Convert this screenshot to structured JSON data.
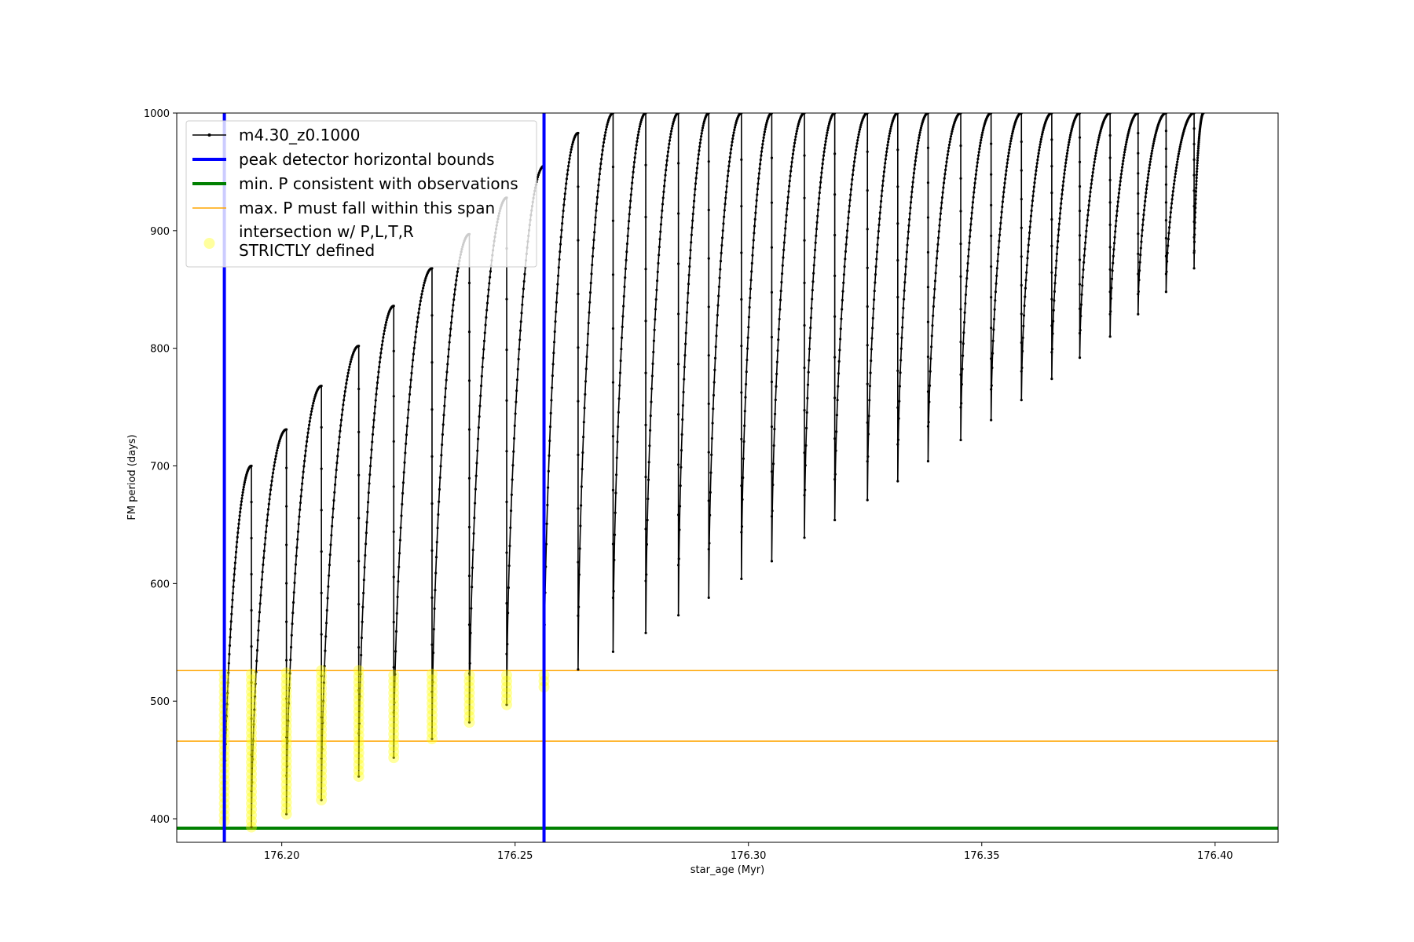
{
  "chart_data": {
    "type": "line",
    "title": "",
    "xlabel": "star_age (Myr)",
    "ylabel": "FM period (days)",
    "xlim": [
      176.1775,
      176.4135
    ],
    "ylim": [
      380,
      1000
    ],
    "xticks": [
      176.2,
      176.25,
      176.3,
      176.35,
      176.4
    ],
    "xtick_labels": [
      "176.20",
      "176.25",
      "176.30",
      "176.35",
      "176.40"
    ],
    "yticks": [
      400,
      500,
      600,
      700,
      800,
      900,
      1000
    ],
    "ytick_labels": [
      "400",
      "500",
      "600",
      "700",
      "800",
      "900",
      "1000"
    ],
    "grid": false,
    "legend_position": "upper-left",
    "legend": [
      {
        "key": "model",
        "label": "m4.30_z0.1000",
        "color": "#000000",
        "style": "line-marker"
      },
      {
        "key": "peak",
        "label": "peak detector horizontal bounds",
        "color": "#0000ff",
        "style": "thick-line"
      },
      {
        "key": "minp",
        "label": "min. P consistent with observations",
        "color": "#008000",
        "style": "thick-line"
      },
      {
        "key": "maxp",
        "label": "max. P must fall within this span",
        "color": "#ffa500",
        "style": "thin-line"
      },
      {
        "key": "inter",
        "label_lines": [
          "intersection w/ P,L,T,R",
          "STRICTLY defined"
        ],
        "color": "#ffff00",
        "style": "circle"
      }
    ],
    "vertical_bounds": {
      "x": [
        176.1877,
        176.2562
      ],
      "color": "#0000ff"
    },
    "min_period": {
      "y": 392,
      "color": "#008000"
    },
    "max_period_span": {
      "y": [
        466,
        526
      ],
      "color": "#ffa500"
    },
    "series": [
      {
        "name": "m4.30_z0.1000",
        "color": "#000000",
        "pulses": [
          {
            "x_start": 176.1877,
            "x_end": 176.1935,
            "p_min": 398,
            "p_max": 700
          },
          {
            "x_start": 176.1935,
            "x_end": 176.201,
            "p_min": 393,
            "p_max": 731
          },
          {
            "x_start": 176.201,
            "x_end": 176.2085,
            "p_min": 404,
            "p_max": 768
          },
          {
            "x_start": 176.2085,
            "x_end": 176.2165,
            "p_min": 416,
            "p_max": 802
          },
          {
            "x_start": 176.2165,
            "x_end": 176.224,
            "p_min": 436,
            "p_max": 836
          },
          {
            "x_start": 176.224,
            "x_end": 176.2322,
            "p_min": 452,
            "p_max": 868
          },
          {
            "x_start": 176.2322,
            "x_end": 176.2402,
            "p_min": 468,
            "p_max": 897
          },
          {
            "x_start": 176.2402,
            "x_end": 176.2482,
            "p_min": 482,
            "p_max": 928
          },
          {
            "x_start": 176.2482,
            "x_end": 176.2562,
            "p_min": 497,
            "p_max": 955
          },
          {
            "x_start": 176.2562,
            "x_end": 176.2635,
            "p_min": 512,
            "p_max": 983
          },
          {
            "x_start": 176.2635,
            "x_end": 176.271,
            "p_min": 527,
            "p_max": 1000
          },
          {
            "x_start": 176.271,
            "x_end": 176.278,
            "p_min": 542,
            "p_max": 1000
          },
          {
            "x_start": 176.278,
            "x_end": 176.285,
            "p_min": 558,
            "p_max": 1000
          },
          {
            "x_start": 176.285,
            "x_end": 176.2915,
            "p_min": 573,
            "p_max": 1000
          },
          {
            "x_start": 176.2915,
            "x_end": 176.2985,
            "p_min": 588,
            "p_max": 1000
          },
          {
            "x_start": 176.2985,
            "x_end": 176.305,
            "p_min": 604,
            "p_max": 1000
          },
          {
            "x_start": 176.305,
            "x_end": 176.312,
            "p_min": 619,
            "p_max": 1000
          },
          {
            "x_start": 176.312,
            "x_end": 176.3185,
            "p_min": 639,
            "p_max": 1000
          },
          {
            "x_start": 176.3185,
            "x_end": 176.3255,
            "p_min": 654,
            "p_max": 1000
          },
          {
            "x_start": 176.3255,
            "x_end": 176.332,
            "p_min": 671,
            "p_max": 1000
          },
          {
            "x_start": 176.332,
            "x_end": 176.3385,
            "p_min": 687,
            "p_max": 1000
          },
          {
            "x_start": 176.3385,
            "x_end": 176.3455,
            "p_min": 704,
            "p_max": 1000
          },
          {
            "x_start": 176.3455,
            "x_end": 176.352,
            "p_min": 722,
            "p_max": 1000
          },
          {
            "x_start": 176.352,
            "x_end": 176.3585,
            "p_min": 739,
            "p_max": 1000
          },
          {
            "x_start": 176.3585,
            "x_end": 176.365,
            "p_min": 756,
            "p_max": 1000
          },
          {
            "x_start": 176.365,
            "x_end": 176.371,
            "p_min": 774,
            "p_max": 1000
          },
          {
            "x_start": 176.371,
            "x_end": 176.3775,
            "p_min": 792,
            "p_max": 1000
          },
          {
            "x_start": 176.3775,
            "x_end": 176.3835,
            "p_min": 810,
            "p_max": 1000
          },
          {
            "x_start": 176.3835,
            "x_end": 176.3895,
            "p_min": 829,
            "p_max": 1000
          },
          {
            "x_start": 176.3895,
            "x_end": 176.3955,
            "p_min": 848,
            "p_max": 1000
          },
          {
            "x_start": 176.3955,
            "x_end": 176.3975,
            "p_min": 868,
            "p_max": 1000
          }
        ]
      }
    ]
  }
}
